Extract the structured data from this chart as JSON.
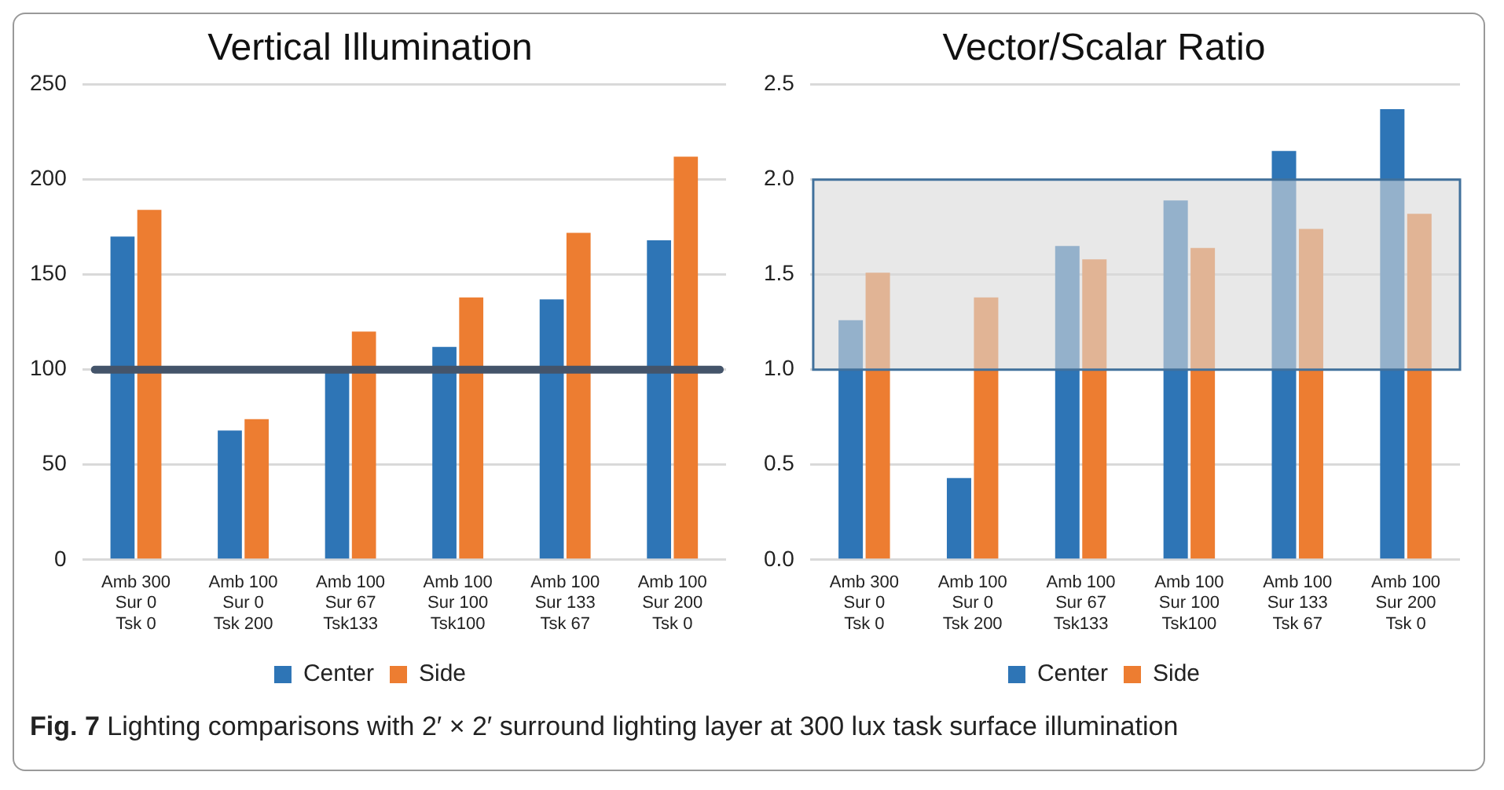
{
  "chart_data": [
    {
      "type": "bar",
      "title": "Vertical Illumination",
      "categories": [
        "Amb 300\nSur 0\nTsk 0",
        "Amb 100\nSur 0\nTsk 200",
        "Amb 100\nSur 67\nTsk133",
        "Amb 100\nSur 100\nTsk100",
        "Amb 100\nSur 133\nTsk 67",
        "Amb 100\nSur 200\nTsk 0"
      ],
      "series": [
        {
          "name": "Center",
          "color": "#2e75b6",
          "values": [
            170,
            68,
            100,
            112,
            137,
            168
          ]
        },
        {
          "name": "Side",
          "color": "#ed7d31",
          "values": [
            184,
            74,
            120,
            138,
            172,
            212
          ]
        }
      ],
      "ylim": [
        0,
        250
      ],
      "yticks": [
        0,
        50,
        100,
        150,
        200,
        250
      ],
      "grid": "y",
      "legend": "bottom",
      "ref_lines": [
        {
          "axis": "y",
          "value": 100,
          "color": "#44546a"
        }
      ],
      "annotations": [
        "Fig. 7 Lighting comparisons with 2′ × 2′ surround lighting layer at 300 lux task surface illumination"
      ]
    },
    {
      "type": "bar",
      "title": "Vector/Scalar Ratio",
      "categories": [
        "Amb 300\nSur 0\nTsk 0",
        "Amb 100\nSur 0\nTsk 200",
        "Amb 100\nSur 67\nTsk133",
        "Amb 100\nSur 100\nTsk100",
        "Amb 100\nSur 133\nTsk 67",
        "Amb 100\nSur 200\nTsk 0"
      ],
      "series": [
        {
          "name": "Center",
          "color": "#2e75b6",
          "values": [
            1.26,
            0.43,
            1.65,
            1.89,
            2.15,
            2.37
          ]
        },
        {
          "name": "Side",
          "color": "#ed7d31",
          "values": [
            1.51,
            1.38,
            1.58,
            1.64,
            1.74,
            1.82
          ]
        }
      ],
      "ylim": [
        0,
        2.5
      ],
      "yticks": [
        {
          "value": 0,
          "label": "0.0"
        },
        0.5,
        {
          "value": 1,
          "label": "1.0"
        },
        1.5,
        {
          "value": 2,
          "label": "2.0"
        },
        2.5
      ],
      "grid": "y",
      "legend": "bottom",
      "bands": [
        {
          "axis": "y",
          "from": 1,
          "to": 2,
          "color": "#d9d9d9"
        }
      ]
    }
  ]
}
